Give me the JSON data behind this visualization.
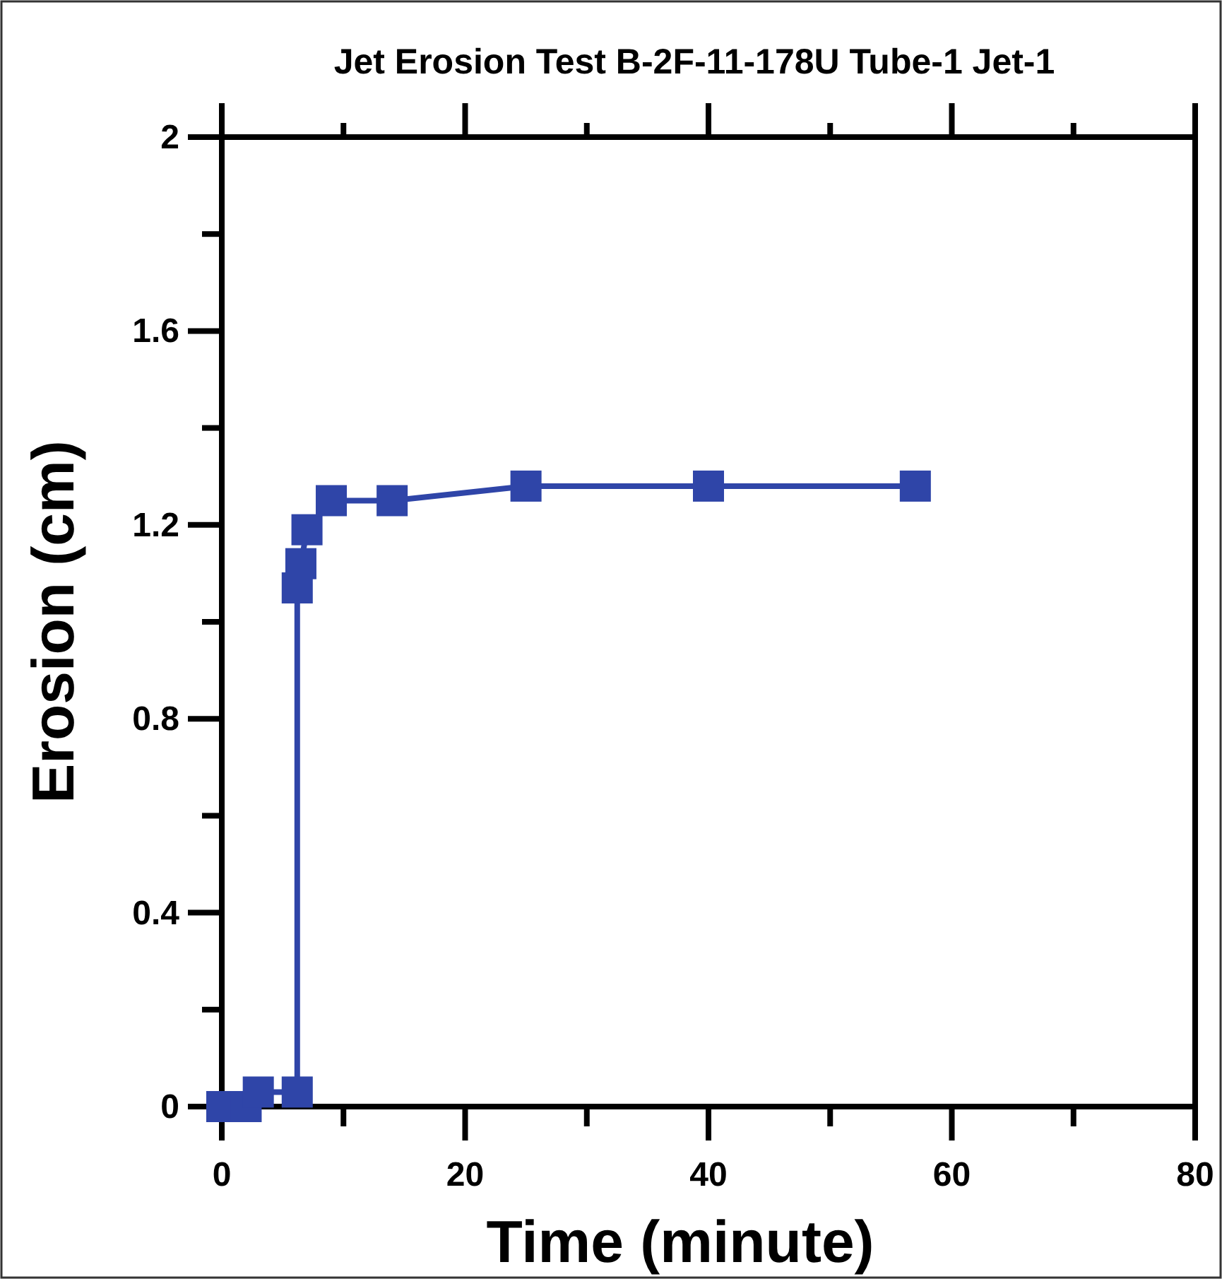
{
  "chart_data": {
    "type": "line",
    "title": "Jet Erosion Test B-2F-11-178U Tube-1 Jet-1",
    "xlabel": "Time (minute)",
    "ylabel": "Erosion (cm)",
    "x": [
      0,
      2,
      3,
      6.2,
      6.2,
      6.5,
      7,
      9,
      14,
      25,
      40,
      57
    ],
    "series": [
      {
        "color": "#2f45a8",
        "values": [
          0,
          0,
          0.03,
          0.03,
          1.07,
          1.12,
          1.19,
          1.25,
          1.25,
          1.28,
          1.28,
          1.28
        ]
      }
    ],
    "xlim": [
      0,
      80
    ],
    "xticks": [
      0,
      20,
      40,
      60,
      80
    ],
    "ylim": [
      0,
      2
    ],
    "yticks": [
      0,
      0.4,
      0.8,
      1.2,
      1.6,
      2
    ],
    "marker": "square",
    "line_style": "solid"
  }
}
